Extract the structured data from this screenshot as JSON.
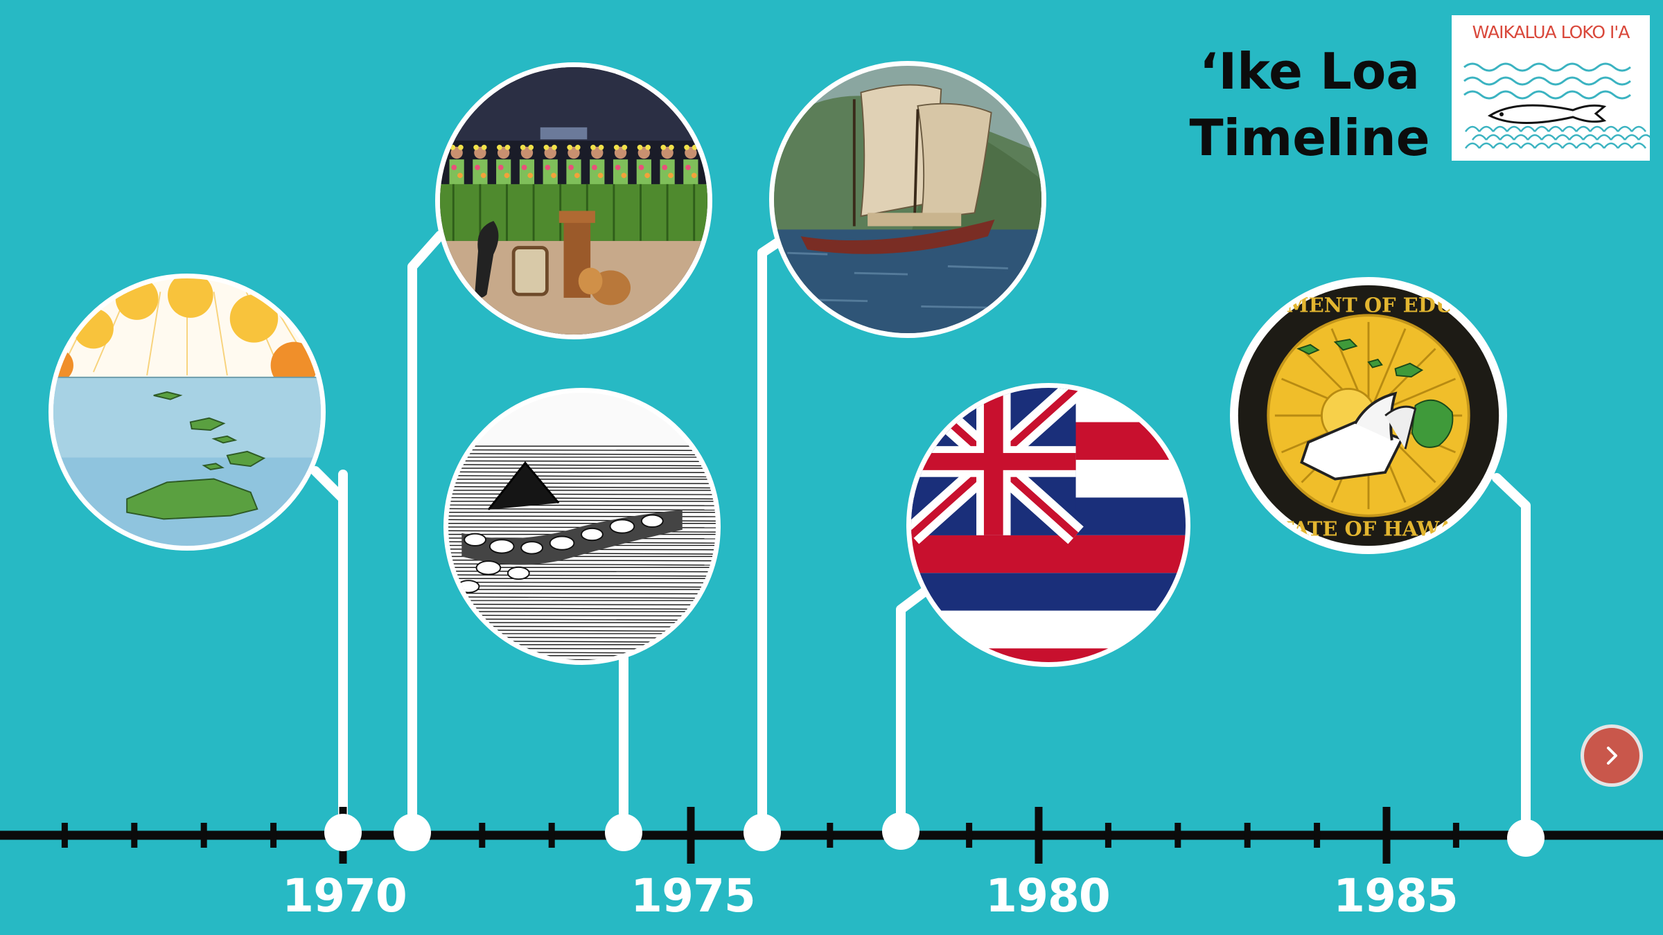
{
  "slide": {
    "title_line1": "‘Ike Loa",
    "title_line2": "Timeline",
    "logo_text": "WAIKALUA LOKO I'A",
    "next_icon": "chevron-right-icon",
    "colors": {
      "background": "#27b9c4",
      "axis": "#0b0b0b",
      "connector": "#ffffff",
      "year_text": "#ffffff",
      "next_button": "#c9574b",
      "logo_accent": "#d9483b"
    }
  },
  "axis": {
    "start_year": 1966,
    "end_year": 1987,
    "major_labels": [
      "1970",
      "1975",
      "1980",
      "1985"
    ]
  },
  "events": [
    {
      "id": "islands",
      "image": "illustration of the Hawaiian island chain with sun rays"
    },
    {
      "id": "hula",
      "image": "hula dancers in ti-leaf skirts with drums on a stage"
    },
    {
      "id": "fishpond",
      "image": "black-and-white sketch of a stone-walled fishpond"
    },
    {
      "id": "canoe",
      "image": "double-hulled voyaging canoe with crab-claw sails"
    },
    {
      "id": "flag",
      "image": "flag of Hawaii"
    },
    {
      "id": "doe-seal",
      "image": "Department of Education State of Hawaii seal",
      "seal_text_top": "DEPARTMENT OF EDUCATION",
      "seal_text_bottom": "STATE OF HAWAII"
    }
  ]
}
